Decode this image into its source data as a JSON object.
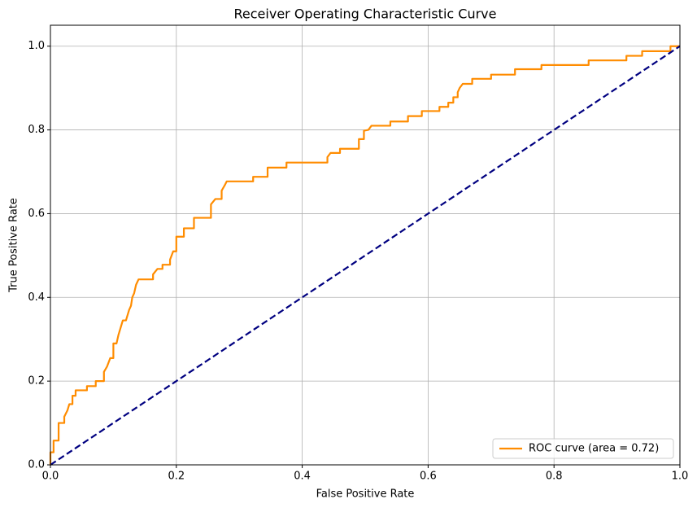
{
  "chart_data": {
    "type": "line",
    "title": "Receiver Operating Characteristic Curve",
    "xlabel": "False Positive Rate",
    "ylabel": "True Positive Rate",
    "xlim": [
      0,
      1
    ],
    "ylim": [
      0,
      1.05
    ],
    "xticks": [
      {
        "value": 0,
        "label": "0.0"
      },
      0.2,
      0.4,
      0.6,
      0.8,
      {
        "value": 1,
        "label": "1.0"
      }
    ],
    "yticks": [
      {
        "value": 0,
        "label": "0.0"
      },
      0.2,
      0.4,
      0.6,
      0.8,
      {
        "value": 1,
        "label": "1.0"
      }
    ],
    "grid": true,
    "legend": "lower right",
    "series": [
      {
        "name": "ROC curve (area = 0.72)",
        "color": "#ff8c00",
        "linestyle": "solid",
        "x": [
          0,
          0,
          0.005,
          0.005,
          0.013,
          0.013,
          0.022,
          0.022,
          0.027,
          0.03,
          0.035,
          0.035,
          0.04,
          0.04,
          0.058,
          0.058,
          0.072,
          0.072,
          0.085,
          0.085,
          0.09,
          0.095,
          0.1,
          0.1,
          0.105,
          0.108,
          0.112,
          0.115,
          0.12,
          0.125,
          0.128,
          0.13,
          0.133,
          0.136,
          0.14,
          0.163,
          0.163,
          0.17,
          0.178,
          0.178,
          0.19,
          0.19,
          0.195,
          0.2,
          0.2,
          0.212,
          0.212,
          0.228,
          0.228,
          0.255,
          0.255,
          0.262,
          0.272,
          0.272,
          0.277,
          0.28,
          0.322,
          0.322,
          0.345,
          0.345,
          0.375,
          0.375,
          0.44,
          0.44,
          0.445,
          0.46,
          0.46,
          0.49,
          0.49,
          0.498,
          0.498,
          0.505,
          0.51,
          0.54,
          0.54,
          0.568,
          0.568,
          0.59,
          0.59,
          0.618,
          0.618,
          0.632,
          0.632,
          0.64,
          0.64,
          0.647,
          0.647,
          0.65,
          0.655,
          0.67,
          0.67,
          0.7,
          0.7,
          0.738,
          0.738,
          0.78,
          0.78,
          0.855,
          0.855,
          0.915,
          0.915,
          0.94,
          0.94,
          0.985,
          0.985,
          1
        ],
        "values": [
          0,
          0.03,
          0.03,
          0.058,
          0.058,
          0.1,
          0.1,
          0.115,
          0.13,
          0.145,
          0.145,
          0.165,
          0.165,
          0.178,
          0.178,
          0.188,
          0.188,
          0.2,
          0.2,
          0.222,
          0.235,
          0.255,
          0.255,
          0.29,
          0.29,
          0.31,
          0.33,
          0.345,
          0.345,
          0.37,
          0.38,
          0.4,
          0.41,
          0.43,
          0.443,
          0.443,
          0.455,
          0.468,
          0.468,
          0.478,
          0.478,
          0.49,
          0.51,
          0.51,
          0.545,
          0.545,
          0.565,
          0.565,
          0.59,
          0.59,
          0.622,
          0.635,
          0.635,
          0.655,
          0.668,
          0.677,
          0.677,
          0.688,
          0.688,
          0.71,
          0.71,
          0.722,
          0.722,
          0.735,
          0.745,
          0.745,
          0.755,
          0.755,
          0.778,
          0.778,
          0.798,
          0.8,
          0.81,
          0.81,
          0.82,
          0.82,
          0.833,
          0.833,
          0.845,
          0.845,
          0.855,
          0.855,
          0.865,
          0.865,
          0.878,
          0.878,
          0.89,
          0.9,
          0.91,
          0.91,
          0.922,
          0.922,
          0.932,
          0.932,
          0.945,
          0.945,
          0.955,
          0.955,
          0.966,
          0.966,
          0.977,
          0.977,
          0.988,
          0.988,
          1,
          1
        ]
      },
      {
        "color": "#000080",
        "linestyle": "dashed",
        "x": [
          0,
          1
        ],
        "values": [
          0,
          1
        ]
      }
    ]
  }
}
